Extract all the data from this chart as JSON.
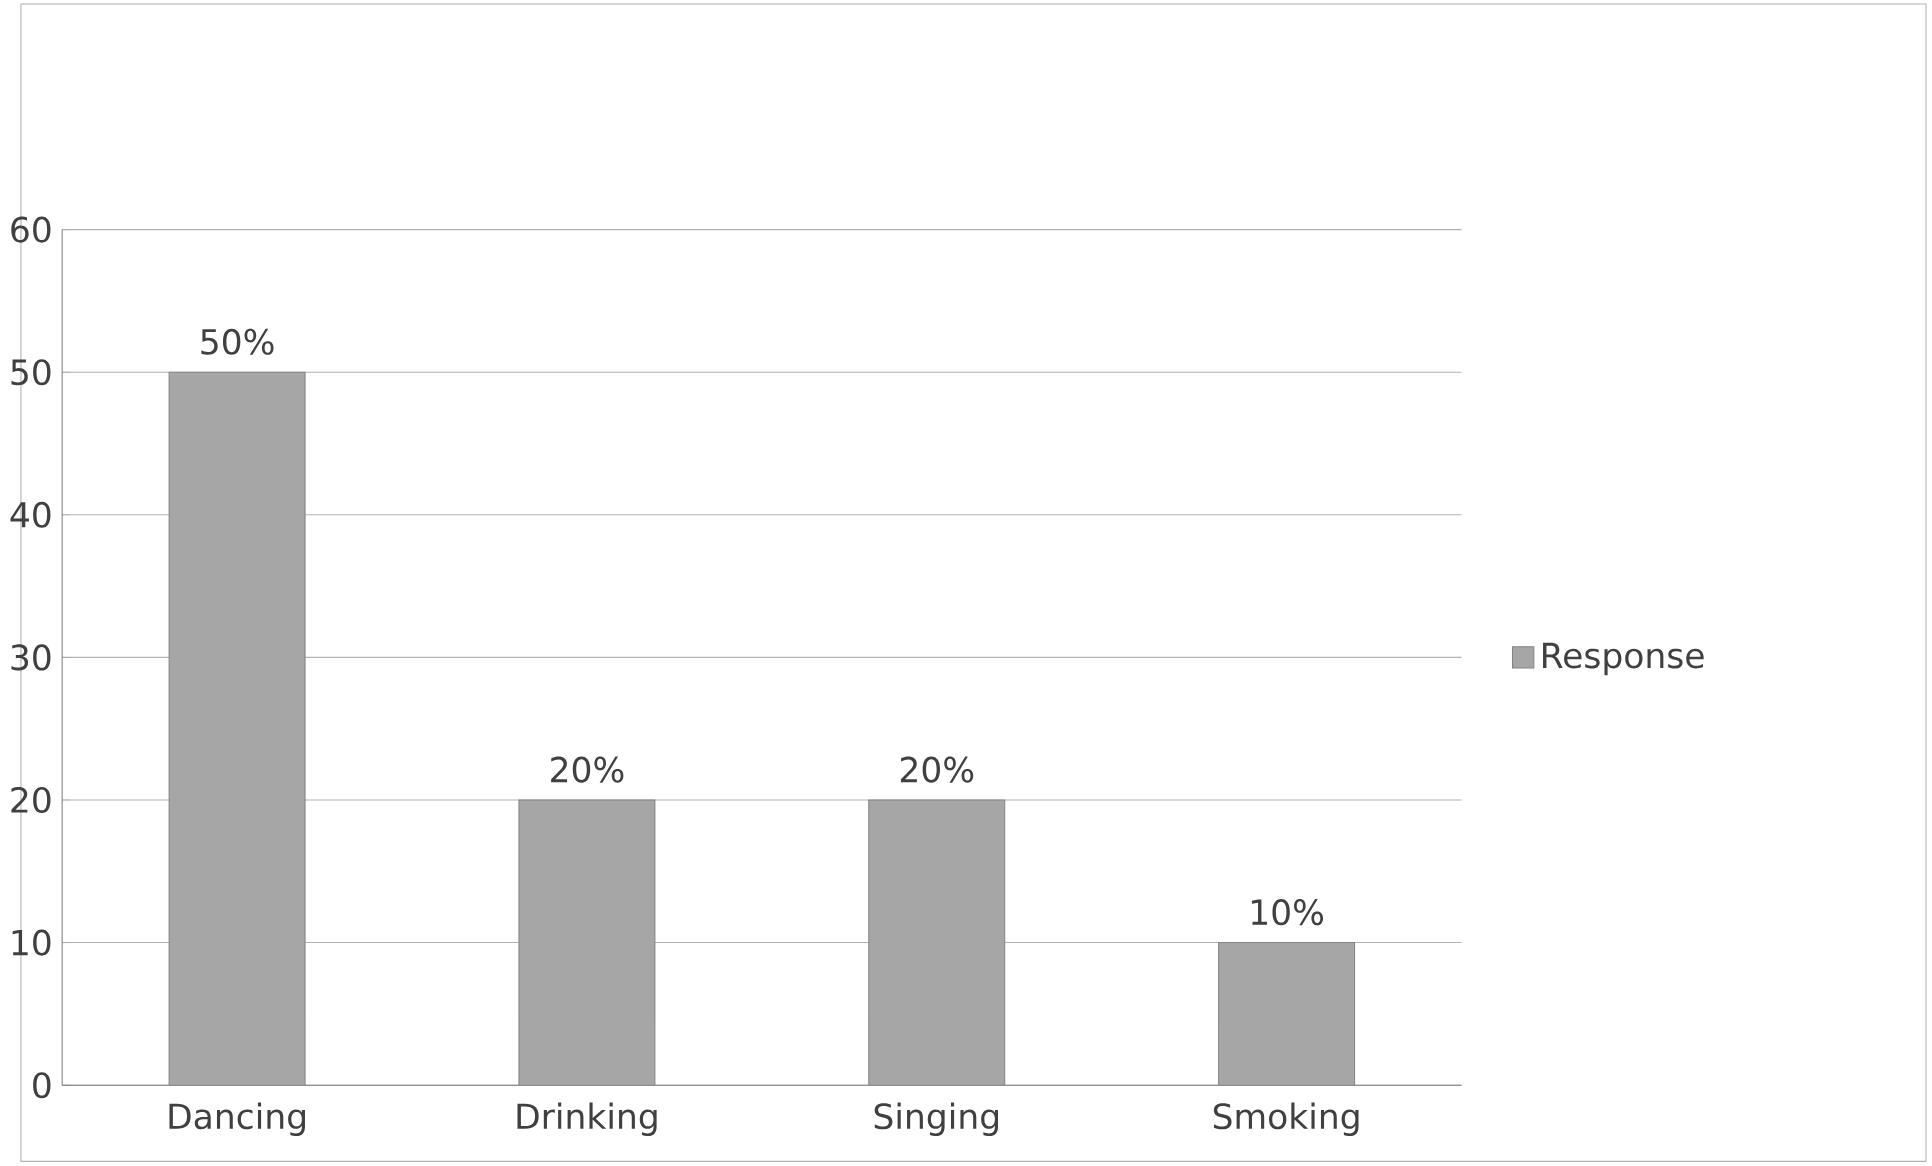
{
  "chart_data": {
    "type": "bar",
    "categories": [
      "Dancing",
      "Drinking",
      "Singing",
      "Smoking"
    ],
    "series": [
      {
        "name": "Response",
        "color": "#a6a6a6",
        "values": [
          50,
          20,
          20,
          10
        ],
        "value_labels": [
          "50%",
          "20%",
          "20%",
          "10%"
        ]
      }
    ],
    "ylim": [
      0,
      60
    ],
    "yticks": [
      0,
      10,
      20,
      30,
      40,
      50,
      60
    ],
    "grid": "y",
    "legend": "right"
  }
}
